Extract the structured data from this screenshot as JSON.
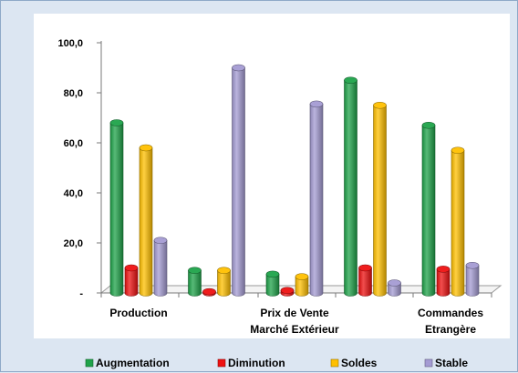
{
  "chart_data": {
    "type": "bar",
    "categories": [
      [
        "Production"
      ],
      [
        ""
      ],
      [
        "Prix de Vente",
        "Marché Extérieur"
      ],
      [
        ""
      ],
      [
        "Commandes",
        "Etrangère"
      ]
    ],
    "series": [
      {
        "name": "Augmentation",
        "values": [
          68,
          9,
          7.5,
          85,
          67
        ],
        "color": "#1fa34a"
      },
      {
        "name": "Diminution",
        "values": [
          10,
          0.5,
          1,
          10,
          9.5
        ],
        "color": "#ee1111"
      },
      {
        "name": "Soldes",
        "values": [
          58,
          9,
          6.5,
          75,
          57
        ],
        "color": "#ffc000"
      },
      {
        "name": "Stable",
        "values": [
          21,
          90,
          75.5,
          4,
          11
        ],
        "color": "#a49bd3"
      }
    ],
    "yticks": [
      "-",
      "20,0",
      "40,0",
      "60,0",
      "80,0",
      "100,0"
    ],
    "ylim": [
      0,
      100
    ],
    "legend_position": "bottom",
    "grid": false,
    "style": "3d-cylinder"
  }
}
